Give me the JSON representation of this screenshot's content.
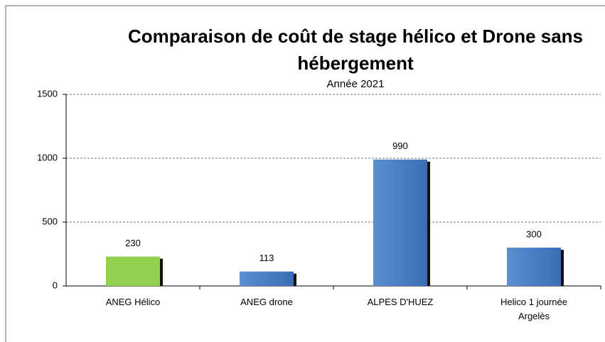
{
  "chart_data": {
    "type": "bar",
    "title": "Comparaison de coût de stage hélico et Drone sans hébergement",
    "subtitle": "Année 2021",
    "categories": [
      "ANEG Hélico",
      "ANEG drone",
      "ALPES D'HUEZ",
      "Helico 1 journée Argelès"
    ],
    "values": [
      230,
      113,
      990,
      300
    ],
    "colors": [
      "#92d050",
      "#4f81bd",
      "#4f81bd",
      "#4f81bd"
    ],
    "ylim": [
      0,
      1500
    ],
    "yticks": [
      0,
      500,
      1000,
      1500
    ],
    "grid": true
  }
}
